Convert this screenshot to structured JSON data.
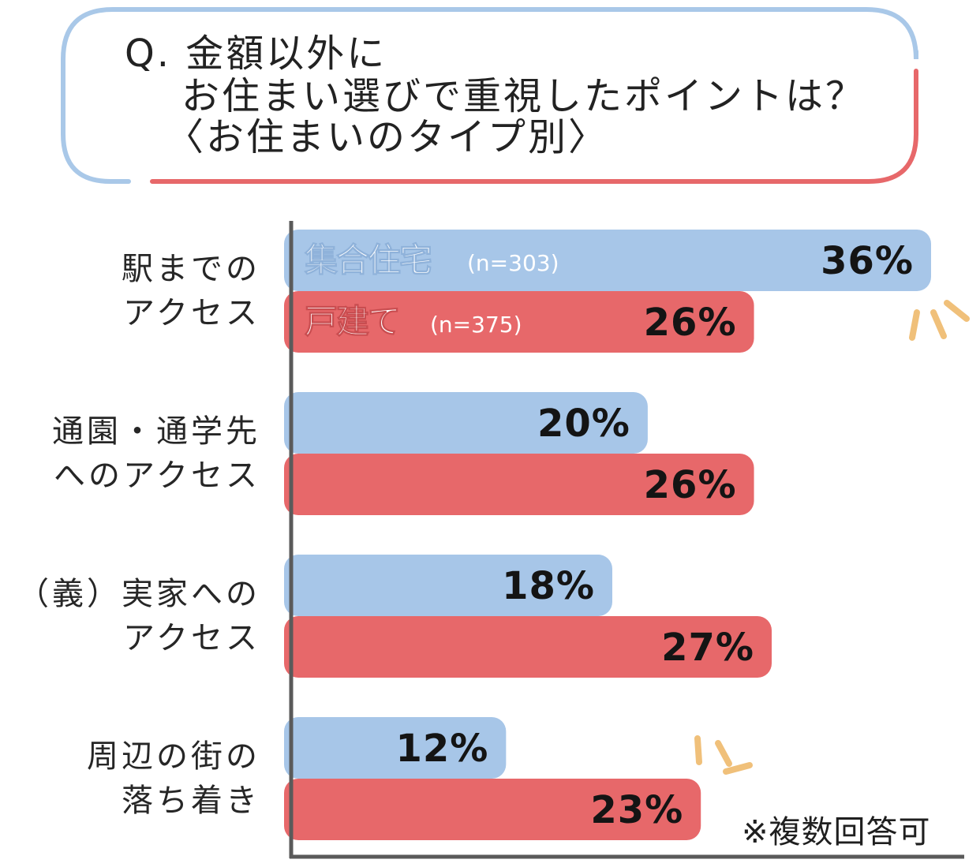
{
  "title": {
    "line1": "Q. 金額以外に",
    "line2": "お住まい選びで重視したポイントは？",
    "line3": "〈お住まいのタイプ別〉"
  },
  "note": "※複数回答可",
  "colors": {
    "apartment": "#a7c6e8",
    "house": "#e7686a",
    "frame_blue": "#a9c8e8",
    "frame_red": "#e7686a",
    "accent": "#f0c07a",
    "axis": "#5a5a5a"
  },
  "chart_data": {
    "type": "bar",
    "orientation": "horizontal",
    "unit": "%",
    "categories": [
      [
        "駅までの",
        "アクセス"
      ],
      [
        "通園・通学先",
        "へのアクセス"
      ],
      [
        "（義）実家への",
        "アクセス"
      ],
      [
        "周辺の街の",
        "落ち着き"
      ]
    ],
    "series": [
      {
        "name": "集合住宅",
        "n_label": "(n=303)",
        "color": "#a7c6e8",
        "values": [
          36,
          20,
          18,
          12
        ]
      },
      {
        "name": "戸建て",
        "n_label": "(n=375)",
        "color": "#e7686a",
        "values": [
          26,
          26,
          27,
          23
        ]
      }
    ],
    "xlim": [
      0,
      36
    ],
    "legend_placement": "inside-first-bars",
    "grid": false
  }
}
